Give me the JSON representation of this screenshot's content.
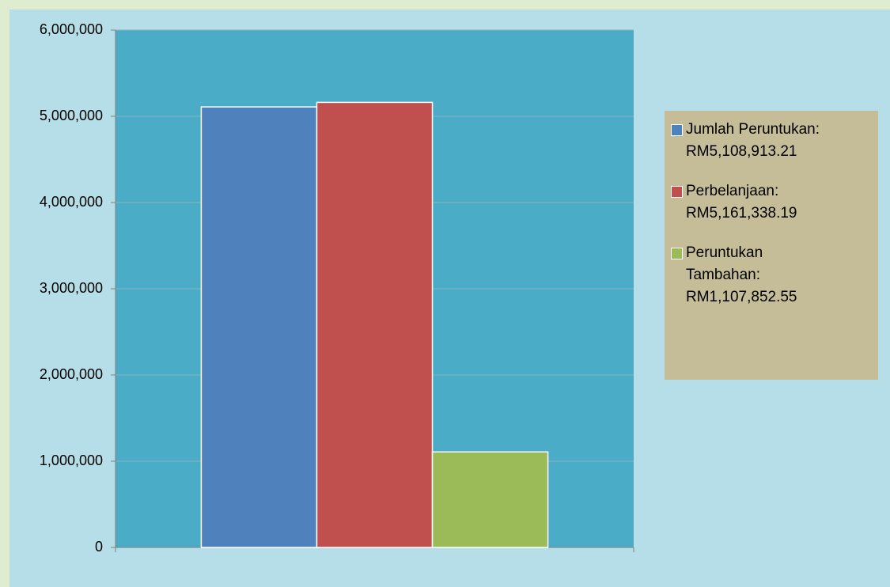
{
  "chart_data": {
    "type": "bar",
    "categories": [
      null
    ],
    "series": [
      {
        "name": "Jumlah Peruntukan: RM5,108,913.21",
        "color": "#4f81bd",
        "values": [
          5108913.21
        ]
      },
      {
        "name": "Perbelanjaan: RM5,161,338.19",
        "color": "#c0504d",
        "values": [
          5161338.19
        ]
      },
      {
        "name": "Peruntukan Tambahan: RM1,107,852.55",
        "color": "#9bbb59",
        "values": [
          1107852.55
        ]
      }
    ],
    "ylim": [
      0,
      6000000
    ],
    "yticks": [
      0,
      {
        "value": 1000000,
        "label": "1,000,000"
      },
      {
        "value": 2000000,
        "label": "2,000,000"
      },
      {
        "value": 3000000,
        "label": "3,000,000"
      },
      {
        "value": 4000000,
        "label": "4,000,000"
      },
      {
        "value": 5000000,
        "label": "5,000,000"
      },
      {
        "value": 6000000,
        "label": "6,000,000"
      }
    ],
    "grid": true,
    "legend": "right"
  }
}
